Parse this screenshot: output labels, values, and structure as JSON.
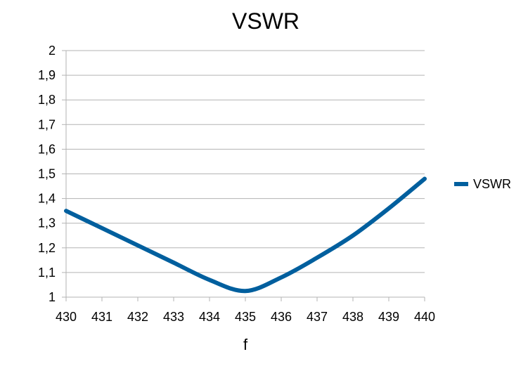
{
  "chart_data": {
    "type": "line",
    "title": "VSWR",
    "xlabel": "f",
    "ylabel": "",
    "x": [
      430,
      431,
      432,
      433,
      434,
      435,
      436,
      437,
      438,
      439,
      440
    ],
    "series": [
      {
        "name": "VSWR",
        "color": "#005f9e",
        "values": [
          1.35,
          1.28,
          1.21,
          1.14,
          1.07,
          1.025,
          1.08,
          1.16,
          1.25,
          1.36,
          1.48
        ]
      }
    ],
    "xlim": [
      430,
      440
    ],
    "ylim": [
      1,
      2
    ],
    "x_ticks": [
      "430",
      "431",
      "432",
      "433",
      "434",
      "435",
      "436",
      "437",
      "438",
      "439",
      "440"
    ],
    "y_ticks": [
      "1",
      "1,1",
      "1,2",
      "1,3",
      "1,4",
      "1,5",
      "1,6",
      "1,7",
      "1,8",
      "1,9",
      "2"
    ],
    "grid": true,
    "legend_position": "right"
  }
}
